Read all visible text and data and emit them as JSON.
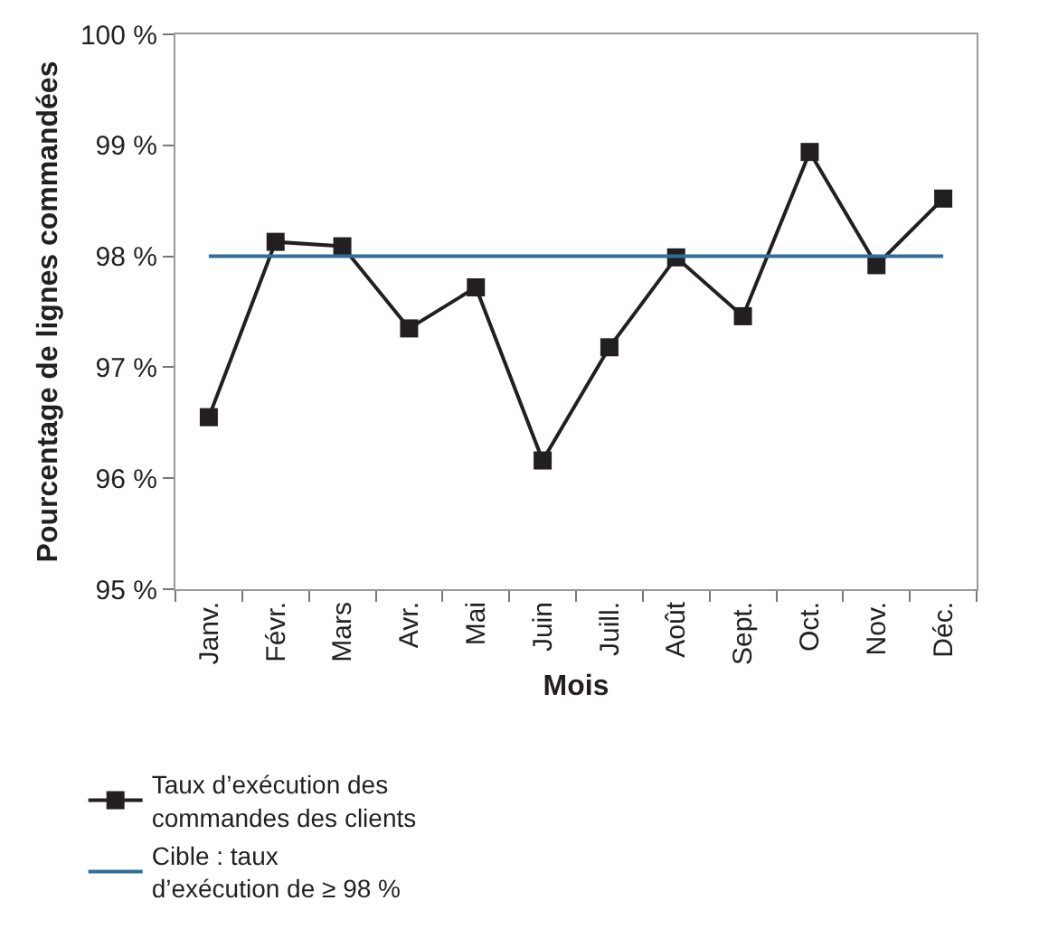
{
  "chart_data": {
    "type": "line",
    "xlabel": "Mois",
    "ylabel": "Pourcentage de lignes commandées",
    "categories": [
      "Janv.",
      "Févr.",
      "Mars",
      "Avr.",
      "Mai",
      "Juin",
      "Juill.",
      "Août",
      "Sept.",
      "Oct.",
      "Nov.",
      "Déc."
    ],
    "series": [
      {
        "name": "Taux d’exécution des\ncommandes des clients",
        "color": "#231f20",
        "marker": "square",
        "values": [
          96.55,
          98.13,
          98.09,
          97.35,
          97.72,
          96.16,
          97.18,
          97.99,
          97.46,
          98.94,
          97.92,
          98.52
        ]
      },
      {
        "name": "Cible : taux\nd’exécution de ≥ 98 %",
        "color": "#2f6f9b",
        "marker": "none",
        "values": [
          98,
          98,
          98,
          98,
          98,
          98,
          98,
          98,
          98,
          98,
          98,
          98
        ]
      }
    ],
    "ylim": [
      95,
      100
    ],
    "yticks": [
      {
        "value": 95,
        "label": "95 %"
      },
      {
        "value": 96,
        "label": "96 %"
      },
      {
        "value": 97,
        "label": "97 %"
      },
      {
        "value": 98,
        "label": "98 %"
      },
      {
        "value": 99,
        "label": "99 %"
      },
      {
        "value": 100,
        "label": "100 %"
      }
    ],
    "legend": "bottom",
    "line_style": "solid"
  }
}
